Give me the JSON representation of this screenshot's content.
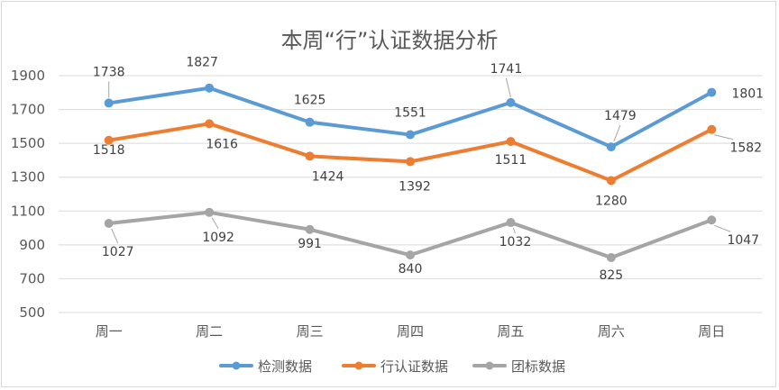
{
  "chart_data": {
    "type": "line",
    "title": "本周“行”认证数据分析",
    "categories": [
      "周一",
      "周二",
      "周三",
      "周四",
      "周五",
      "周六",
      "周日"
    ],
    "series": [
      {
        "name": "检测数据",
        "color": "#5b9bd5",
        "values": [
          1738,
          1827,
          1625,
          1551,
          1741,
          1479,
          1801
        ]
      },
      {
        "name": "行认证数据",
        "color": "#ed7d31",
        "values": [
          1518,
          1616,
          1424,
          1392,
          1511,
          1280,
          1582
        ]
      },
      {
        "name": "团标数据",
        "color": "#a5a5a5",
        "values": [
          1027,
          1092,
          991,
          840,
          1032,
          825,
          1047
        ]
      }
    ],
    "yticks": [
      500,
      700,
      900,
      1100,
      1300,
      1500,
      1700,
      1900
    ],
    "ylim": [
      500,
      1900
    ],
    "grid": true,
    "legend": "bottom",
    "xlabel": "",
    "ylabel": ""
  }
}
